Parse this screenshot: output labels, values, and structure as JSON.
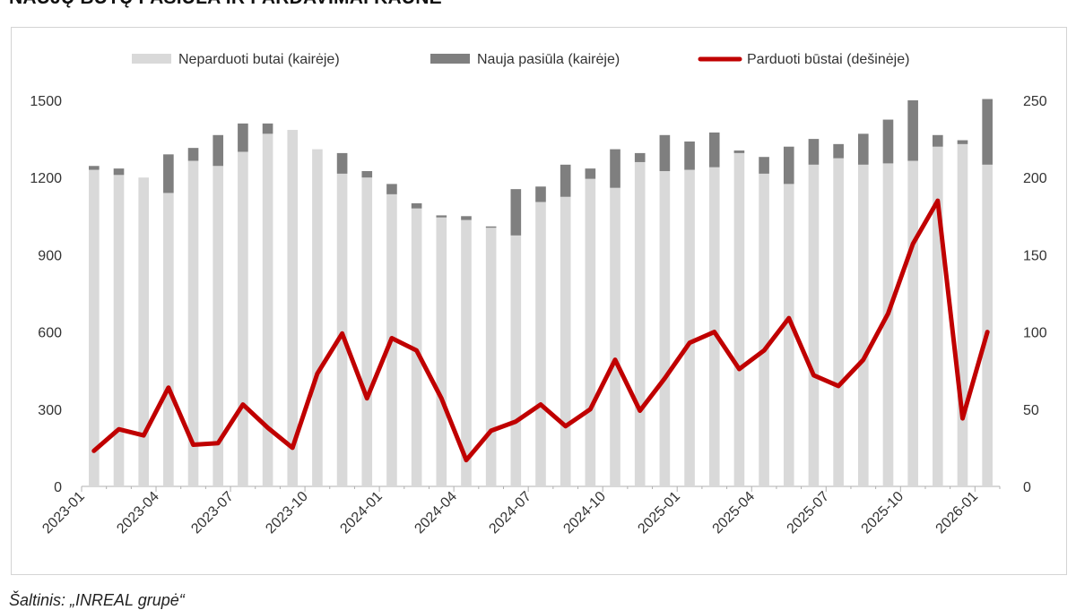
{
  "page": {
    "title": "NAUJŲ BUTŲ PASIŪLA IR PARDAVIMAI KAUNE",
    "source": "Šaltinis: „INREAL grupė“"
  },
  "colors": {
    "unsold": "#d9d9d9",
    "new_supply": "#7f7f7f",
    "sold": "#c00000",
    "axis": "#b0b0b0"
  },
  "chart_data": {
    "type": "bar",
    "title": "NAUJŲ BUTŲ PASIŪLA IR PARDAVIMAI KAUNE",
    "xlabel": "",
    "ylabel": "",
    "ylabel_right": "",
    "grid": false,
    "legend_position": "top",
    "stacked": true,
    "categories": [
      "2023-01",
      "2023-02",
      "2023-03",
      "2023-04",
      "2023-05",
      "2023-06",
      "2023-07",
      "2023-08",
      "2023-09",
      "2023-10",
      "2023-11",
      "2023-12",
      "2024-01",
      "2024-02",
      "2024-03",
      "2024-04",
      "2024-05",
      "2024-06",
      "2024-07",
      "2024-08",
      "2024-09",
      "2024-10",
      "2024-11",
      "2024-12",
      "2025-01",
      "2025-02",
      "2025-03",
      "2025-04",
      "2025-05",
      "2025-06",
      "2025-07",
      "2025-08",
      "2025-09",
      "2025-10",
      "2025-11",
      "2025-12",
      "2026-01"
    ],
    "x_tick_labels": [
      "2023-01",
      "2023-04",
      "2023-07",
      "2023-10",
      "2024-01",
      "2024-04",
      "2024-07",
      "2024-10",
      "2025-01",
      "2025-04",
      "2025-07",
      "2025-10",
      "2026-01"
    ],
    "ylim_left": [
      0,
      1500
    ],
    "yticks_left": [
      "0",
      "300",
      "600",
      "900",
      "1200",
      "1500"
    ],
    "ylim_right": [
      0,
      250
    ],
    "yticks_right": [
      "0",
      "50",
      "100",
      "150",
      "200",
      "250"
    ],
    "series": [
      {
        "name": "Neparduoti butai (kairėje)",
        "type": "bar",
        "axis": "left",
        "values": [
          1230,
          1210,
          1200,
          1140,
          1265,
          1245,
          1300,
          1370,
          1385,
          1310,
          1215,
          1200,
          1135,
          1080,
          1045,
          1035,
          1005,
          975,
          1105,
          1125,
          1195,
          1160,
          1260,
          1225,
          1230,
          1240,
          1295,
          1215,
          1175,
          1250,
          1275,
          1250,
          1255,
          1265,
          1320,
          1330,
          1250
        ]
      },
      {
        "name": "Nauja pasiūla (kairėje)",
        "type": "bar",
        "axis": "left",
        "values": [
          15,
          25,
          0,
          150,
          50,
          120,
          110,
          40,
          0,
          0,
          80,
          25,
          40,
          20,
          8,
          15,
          5,
          180,
          60,
          125,
          40,
          150,
          35,
          140,
          110,
          135,
          10,
          65,
          145,
          100,
          55,
          120,
          170,
          235,
          45,
          15,
          255
        ]
      },
      {
        "name": "Parduoti būstai (dešinėje)",
        "type": "line",
        "axis": "right",
        "values": [
          23,
          37,
          33,
          64,
          27,
          28,
          53,
          38,
          25,
          73,
          99,
          57,
          96,
          88,
          57,
          17,
          36,
          42,
          53,
          39,
          50,
          82,
          49,
          70,
          93,
          100,
          76,
          88,
          109,
          72,
          65,
          82,
          112,
          157,
          185,
          44,
          100
        ]
      }
    ]
  }
}
